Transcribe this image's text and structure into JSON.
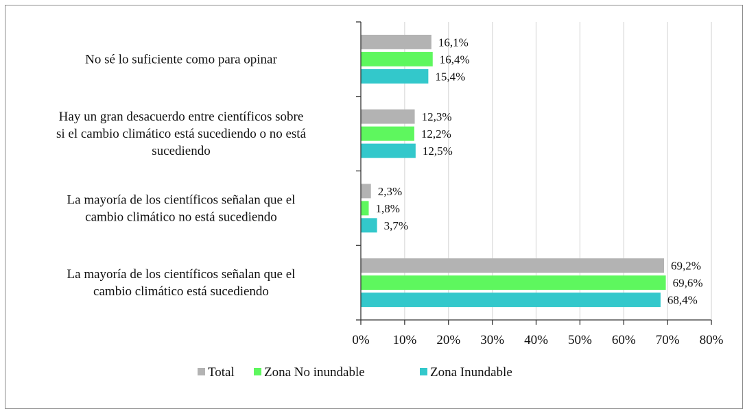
{
  "chart_data": {
    "type": "bar",
    "orientation": "horizontal",
    "title": "",
    "xlabel": "",
    "ylabel": "",
    "xlim": [
      0,
      80
    ],
    "x_ticks": [
      "0%",
      "10%",
      "20%",
      "30%",
      "40%",
      "50%",
      "60%",
      "70%",
      "80%"
    ],
    "x_tick_values": [
      0,
      10,
      20,
      30,
      40,
      50,
      60,
      70,
      80
    ],
    "grid": true,
    "legend_position": "bottom",
    "categories": [
      [
        "No sé lo suficiente como para opinar"
      ],
      [
        "Hay un gran desacuerdo entre científicos sobre",
        "si el cambio climático está sucediendo o no está",
        "sucediendo"
      ],
      [
        "La mayoría de los científicos señalan que el",
        "cambio climático no está sucediendo"
      ],
      [
        "La mayoría de los científicos señalan que el",
        "cambio climático está sucediendo"
      ]
    ],
    "series": [
      {
        "name": "Total",
        "color": "#b3b3b3",
        "values": [
          16.1,
          12.3,
          2.3,
          69.2
        ],
        "labels": [
          "16,1%",
          "12,3%",
          "2,3%",
          "69,2%"
        ]
      },
      {
        "name": "Zona No inundable",
        "color": "#5ef75e",
        "values": [
          16.4,
          12.2,
          1.8,
          69.6
        ],
        "labels": [
          "16,4%",
          "12,2%",
          "1,8%",
          "69,6%"
        ]
      },
      {
        "name": "Zona Inundable",
        "color": "#33c8cb",
        "values": [
          15.4,
          12.5,
          3.7,
          68.4
        ],
        "labels": [
          "15,4%",
          "12,5%",
          "3,7%",
          "68,4%"
        ]
      }
    ]
  }
}
